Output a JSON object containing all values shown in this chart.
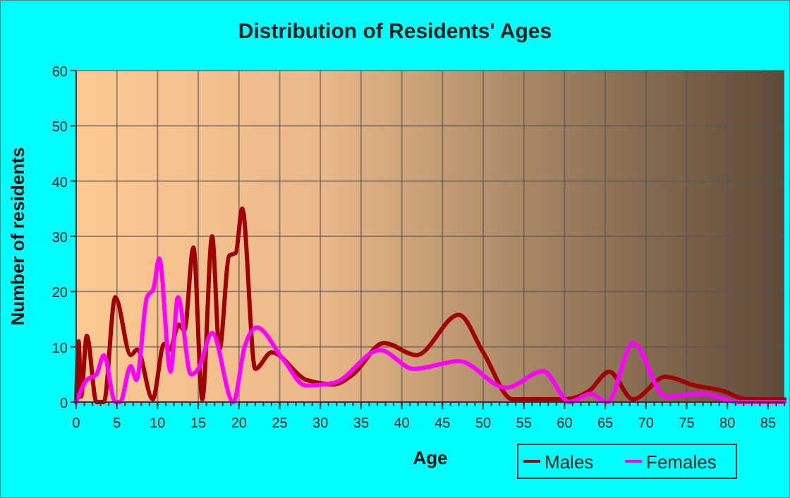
{
  "chart_data": {
    "type": "line",
    "title": "Distribution of Residents' Ages",
    "xlabel": "Age",
    "ylabel": "Number of residents",
    "xlim": [
      0,
      87
    ],
    "ylim": [
      0,
      60
    ],
    "xticks": [
      0,
      5,
      10,
      15,
      20,
      25,
      30,
      35,
      40,
      45,
      50,
      55,
      60,
      65,
      70,
      75,
      80,
      85
    ],
    "yticks": [
      0,
      10,
      20,
      30,
      40,
      50,
      60
    ],
    "grid": true,
    "legend": "bottom right",
    "series": [
      {
        "name": "Males",
        "color": "#a00000",
        "x": [
          0,
          0.3,
          0.6,
          1.3,
          2.5,
          3.4,
          4.8,
          6.7,
          7.5,
          9.4,
          10.8,
          11.5,
          12.6,
          13.3,
          14.4,
          15.5,
          16.7,
          17.6,
          18.8,
          19.6,
          20.4,
          22,
          24,
          28.3,
          31.7,
          34,
          37.8,
          41.8,
          47,
          50,
          53.6,
          57,
          60,
          63,
          65.5,
          68.4,
          72.4,
          76,
          79.5,
          82.4,
          87
        ],
        "values": [
          0,
          11,
          1,
          12,
          0,
          0,
          19,
          8.5,
          9.5,
          0.5,
          10.5,
          9.5,
          14,
          13,
          28,
          0.5,
          30,
          9.5,
          26.5,
          27,
          35,
          6,
          9,
          4,
          3.2,
          5,
          10.7,
          8.5,
          15.8,
          9,
          0.5,
          0.5,
          0.5,
          2,
          5.5,
          0.5,
          4.6,
          3,
          2,
          0.5,
          0.5
        ]
      },
      {
        "name": "Females",
        "color": "#ff00ff",
        "x": [
          0,
          1.3,
          2.5,
          3.4,
          4.8,
          5.4,
          6.7,
          7.4,
          8.7,
          9.5,
          10.2,
          11.6,
          12.5,
          14.1,
          15,
          16.7,
          19.3,
          20.7,
          22.2,
          25.3,
          28.2,
          31.7,
          37.3,
          41.5,
          47,
          52.8,
          57.4,
          60.6,
          63.2,
          65.3,
          68.4,
          72.4,
          77,
          81.4,
          87
        ],
        "values": [
          0,
          4,
          5,
          8.5,
          0,
          0,
          6.5,
          4,
          19,
          20.5,
          26,
          5.5,
          19,
          5,
          6,
          12.5,
          0,
          10,
          13.5,
          8,
          3,
          3.5,
          9.4,
          6,
          7.4,
          2.6,
          5.6,
          0,
          1.5,
          0,
          10.7,
          1,
          1.5,
          0,
          0
        ]
      }
    ]
  }
}
